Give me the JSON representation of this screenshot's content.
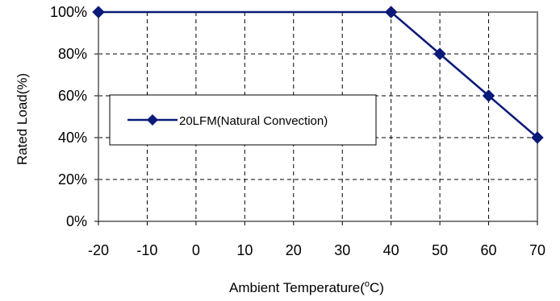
{
  "chart_data": {
    "type": "line",
    "title": "",
    "xlabel": "Ambient Temperature",
    "xlabel_unit_prefix": "(",
    "xlabel_unit_degree": "o",
    "xlabel_unit_suffix": "C)",
    "ylabel": "Rated Load(%)",
    "x_ticks": [
      "-20",
      "-10",
      "0",
      "10",
      "20",
      "30",
      "40",
      "50",
      "60",
      "70"
    ],
    "y_ticks": [
      "0%",
      "20%",
      "40%",
      "60%",
      "80%",
      "100%"
    ],
    "xlim": [
      -20,
      70
    ],
    "ylim": [
      0,
      100
    ],
    "grid": true,
    "legend_position": "middle-left",
    "series": [
      {
        "name": "20LFM(Natural Convection)",
        "color": "#0b1a78",
        "marker": "diamond",
        "x": [
          -20,
          40,
          50,
          60,
          70
        ],
        "y": [
          100,
          100,
          80,
          60,
          40
        ]
      }
    ]
  }
}
